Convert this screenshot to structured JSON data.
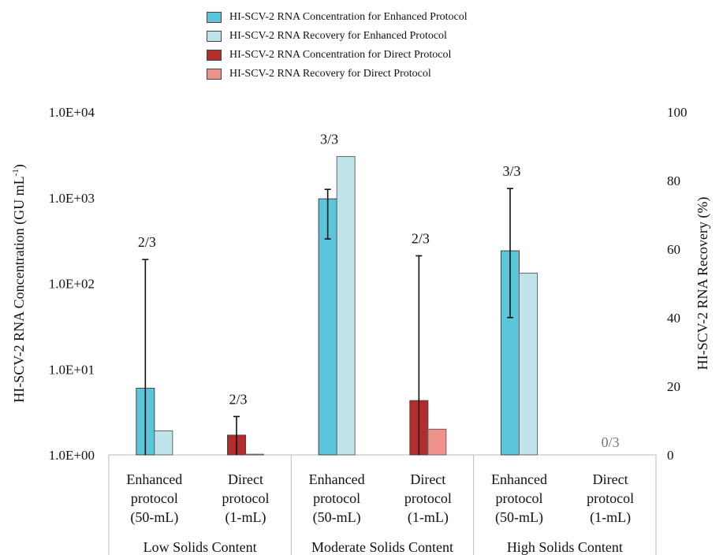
{
  "chart_data": {
    "type": "bar",
    "legend_position": "top",
    "y_left": {
      "label": "HI-SCV-2 RNA Concentration (GU mL-1)",
      "scale": "log",
      "range": [
        1,
        10000
      ],
      "ticks": [
        "1.0E+00",
        "1.0E+01",
        "1.0E+02",
        "1.0E+03",
        "1.0E+04"
      ]
    },
    "y_right": {
      "label": "HI-SCV-2 RNA Recovery (%)",
      "range": [
        0,
        100
      ],
      "ticks": [
        "0",
        "20",
        "40",
        "60",
        "80",
        "100"
      ]
    },
    "groups": [
      {
        "label": "Low Solids Content",
        "categories": [
          {
            "lines": [
              "Enhanced",
              "protocol",
              "(50-mL)"
            ],
            "detection": "2/3",
            "concentration": 6.0,
            "conc_err": [
              1,
              190
            ],
            "recovery": 7,
            "protocol": "enhanced"
          },
          {
            "lines": [
              "Direct",
              "protocol",
              "(1-mL)"
            ],
            "detection": "2/3",
            "concentration": 1.7,
            "conc_err": [
              1,
              2.8
            ],
            "recovery": 0.2,
            "protocol": "direct"
          }
        ]
      },
      {
        "label": "Moderate Solids Content",
        "categories": [
          {
            "lines": [
              "Enhanced",
              "protocol",
              "(50-mL)"
            ],
            "detection": "3/3",
            "concentration": 970,
            "conc_err": [
              330,
              1250
            ],
            "recovery": 87,
            "protocol": "enhanced"
          },
          {
            "lines": [
              "Direct",
              "protocol",
              "(1-mL)"
            ],
            "detection": "2/3",
            "concentration": 4.3,
            "conc_err": [
              1,
              210
            ],
            "recovery": 7.5,
            "protocol": "direct"
          }
        ]
      },
      {
        "label": "High Solids Content",
        "categories": [
          {
            "lines": [
              "Enhanced",
              "protocol",
              "(50-mL)"
            ],
            "detection": "3/3",
            "concentration": 240,
            "conc_err": [
              40,
              1280
            ],
            "recovery": 53,
            "protocol": "enhanced"
          },
          {
            "lines": [
              "Direct",
              "protocol",
              "(1-mL)"
            ],
            "detection": "0/3",
            "concentration": null,
            "conc_err": null,
            "recovery": null,
            "protocol": "direct"
          }
        ]
      }
    ],
    "series": [
      {
        "name": "HI-SCV-2 RNA Concentration for Enhanced Protocol",
        "color": "#5bc5d9"
      },
      {
        "name": "HI-SCV-2 RNA Recovery for Enhanced Protocol",
        "color": "#bfe5ea"
      },
      {
        "name": "HI-SCV-2 RNA Concentration for Direct Protocol",
        "color": "#b42d2d"
      },
      {
        "name": "HI-SCV-2 RNA Recovery for Direct Protocol",
        "color": "#ef918b"
      }
    ]
  }
}
